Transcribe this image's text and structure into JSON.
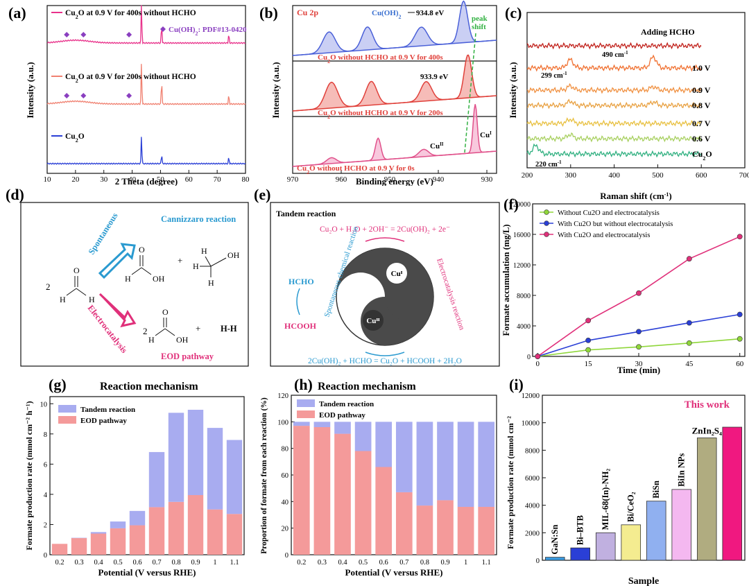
{
  "panels": {
    "a": {
      "label": "(a)",
      "xlabel": "2 Theta (degree)",
      "ylabel": "Intensity (a.u.)",
      "xticks": [
        10,
        20,
        30,
        40,
        50,
        60,
        70,
        80
      ],
      "legend_marker": "Cu(OH)",
      "legend_marker_sub": "2",
      "legend_marker_rest": ": PDF#13-0420",
      "series": [
        {
          "name_pre": "Cu",
          "name_sub": "2",
          "name_post": "O at 0.9 V for 400s without HCHO",
          "color": "#e8318a"
        },
        {
          "name_pre": "Cu",
          "name_sub": "2",
          "name_post": "O at 0.9 V for 200s without HCHO",
          "color": "#f08070"
        },
        {
          "name_pre": "Cu",
          "name_sub": "2",
          "name_post": "O",
          "color": "#2a3fd6"
        }
      ],
      "peaks": [
        43.3,
        50.4,
        74.1
      ],
      "diamonds": [
        16.9,
        22.8,
        38.9
      ]
    },
    "b": {
      "label": "(b)",
      "corner": "Cu 2p",
      "xlabel": "Binding energy (eV)",
      "ylabel": "Intensity (a.u.)",
      "xticks": [
        970,
        960,
        950,
        940,
        930
      ],
      "ann_top": "934.8 eV",
      "ann_top_species": "Cu(OH)",
      "ann_top_species_sub": "2",
      "ann_shift": "peak",
      "ann_shift2": "shift",
      "ann_mid": "933.9 eV",
      "ann_cu2": "Cu",
      "ann_cu2_sup": "II",
      "ann_cu1": "Cu",
      "ann_cu1_sup": "I",
      "spectra": [
        {
          "name_pre": "Cu",
          "name_sub": "2",
          "name_post": "O without HCHO at 0.9 V for 400s",
          "color": "#4a60d8",
          "fill": "#b8bff0"
        },
        {
          "name_pre": "Cu",
          "name_sub": "2",
          "name_post": "O without HCHO at 0.9 V for 200s",
          "color": "#e0403a",
          "fill": "#f3a6a0"
        },
        {
          "name_pre": "Cu",
          "name_sub": "2",
          "name_post": "O without HCHO  at 0.9 V for 0s",
          "color": "#e0508a",
          "fill": "#f6b6d2"
        }
      ]
    },
    "c": {
      "label": "(c)",
      "xlabel": "Raman shift (cm",
      "xlabel_sup": "-1",
      "xlabel_end": ")",
      "ylabel": "Intensity (a.u.)",
      "xticks": [
        200,
        300,
        400,
        500,
        600,
        700
      ],
      "ann_299": "299 cm",
      "ann_490": "490 cm",
      "ann_220": "220 cm",
      "ann_sup": "-1",
      "traces": [
        {
          "label": "Adding HCHO",
          "color": "#c0201a"
        },
        {
          "label": "1.0 V",
          "color": "#f07030"
        },
        {
          "label": "0.9 V",
          "color": "#f09040"
        },
        {
          "label": "0.8 V",
          "color": "#e8a040"
        },
        {
          "label": "0.7 V",
          "color": "#e8c040"
        },
        {
          "label": "0.6 V",
          "color": "#a8d060"
        },
        {
          "label": "Cu",
          "label_sub": "2",
          "label_post": "O",
          "color": "#30b080"
        }
      ]
    },
    "d": {
      "label": "(d)",
      "title": "Cannizzaro reaction",
      "spont": "Spontaneous",
      "electro": "Electrocatalysis",
      "eod": "EOD pathway",
      "coef": "2",
      "coef2": "2",
      "plus": "+",
      "hh": "H-H"
    },
    "e": {
      "label": "(e)",
      "title": "Tandem reaction",
      "eq_top": "Cu₂O + H₂O + 2OH⁻ = 2Cu(OH)₂ + 2e⁻",
      "eq_bottom": "2Cu(OH)₂ + HCHO = Cu₂O + HCOOH + 2H₂O",
      "hcho": "HCHO",
      "hcooh": "HCOOH",
      "cu1": "Cuᴵ",
      "cu2": "Cuᴵᴵ",
      "left_arc": "Spontaneous chemical reaction",
      "right_arc": "Electrocatalysis reaction"
    },
    "f": {
      "label": "(f)",
      "xlabel": "Time (min)",
      "ylabel": "Formate accumulation (mg/L)",
      "xticks": [
        0,
        15,
        30,
        45,
        60
      ],
      "yticks": [
        0,
        4000,
        8000,
        12000,
        16000,
        20000
      ]
    },
    "g": {
      "label": "(g)",
      "title": "Reaction mechanism",
      "xlabel": "Potential (V versus RHE)",
      "ylabel": "Formate production rate (mmol cm⁻² h⁻¹)",
      "yticks": [
        0,
        2,
        4,
        6,
        8,
        10
      ]
    },
    "h": {
      "label": "(h)",
      "title": "Reaction mechanism",
      "xlabel": "Potential (V versus RHE)",
      "ylabel": "Proportion of formate from each reaction (%)",
      "yticks": [
        0,
        20,
        40,
        60,
        80,
        100,
        120
      ]
    },
    "i": {
      "label": "(i)",
      "note": "This work",
      "xlabel": "Sample",
      "ylabel": "Formate production rate (mmol cm⁻²",
      "yticks": [
        0,
        2000,
        4000,
        6000,
        8000,
        10000,
        12000
      ]
    }
  },
  "chart_data": [
    {
      "id": "a",
      "type": "line",
      "xlabel": "2 Theta (degree)",
      "ylabel": "Intensity (a.u.)",
      "xlim": [
        10,
        80
      ],
      "series": [
        {
          "name": "Cu2O at 0.9 V for 400s without HCHO",
          "peak_positions": [
            43.3,
            50.4,
            74.1
          ],
          "peak_heights": [
            1.0,
            0.45,
            0.3
          ]
        },
        {
          "name": "Cu2O at 0.9 V for 200s without HCHO",
          "peak_positions": [
            43.3,
            50.4,
            74.1
          ],
          "peak_heights": [
            1.0,
            0.6,
            0.25
          ]
        },
        {
          "name": "Cu2O",
          "peak_positions": [
            43.3,
            50.4,
            74.1
          ],
          "peak_heights": [
            1.0,
            0.35,
            0.2
          ]
        }
      ],
      "legend": [
        "Cu2O at 0.9 V for 400s without HCHO",
        "Cu2O at 0.9 V for 200s without HCHO",
        "Cu2O",
        "Cu(OH)2: PDF#13-0420"
      ]
    },
    {
      "id": "b",
      "type": "line",
      "xlabel": "Binding energy (eV)",
      "ylabel": "Intensity (a.u.)",
      "xlim": [
        970,
        928
      ],
      "series": [
        {
          "name": "Cu2O without HCHO at 0.9 V for 400s",
          "peaks_eV": [
            962.5,
            954.6,
            943.5,
            934.8
          ],
          "peak_heights": [
            0.5,
            0.55,
            0.45,
            1.0
          ]
        },
        {
          "name": "Cu2O without HCHO at 0.9 V for 200s",
          "peaks_eV": [
            962.0,
            953.8,
            942.5,
            933.9
          ],
          "peak_heights": [
            0.6,
            0.55,
            0.45,
            1.0
          ]
        },
        {
          "name": "Cu2O without HCHO at 0.9 V for 0s",
          "peaks_eV": [
            962.0,
            952.4,
            943.0,
            932.4
          ],
          "peak_heights": [
            0.12,
            0.45,
            0.15,
            1.0
          ]
        }
      ]
    },
    {
      "id": "c",
      "type": "line",
      "xlabel": "Raman shift (cm-1)",
      "ylabel": "Intensity (a.u.)",
      "xlim": [
        200,
        700
      ],
      "series": [
        {
          "name": "Adding HCHO",
          "peaks_cm": []
        },
        {
          "name": "1.0 V",
          "peaks_cm": [
            299,
            490
          ]
        },
        {
          "name": "0.9 V",
          "peaks_cm": [
            299,
            490
          ]
        },
        {
          "name": "0.8 V",
          "peaks_cm": [
            299,
            490
          ]
        },
        {
          "name": "0.7 V",
          "peaks_cm": [
            299
          ]
        },
        {
          "name": "0.6 V",
          "peaks_cm": [
            299
          ]
        },
        {
          "name": "Cu2O",
          "peaks_cm": [
            220
          ]
        }
      ]
    },
    {
      "id": "f",
      "type": "line",
      "xlabel": "Time (min)",
      "ylabel": "Formate accumulation (mg/L)",
      "xlim": [
        0,
        60
      ],
      "ylim": [
        0,
        20000
      ],
      "x": [
        0,
        15,
        30,
        45,
        60
      ],
      "series": [
        {
          "name": "Without Cu2O and electrocatalysis",
          "color": "#8fd63a",
          "values": [
            0,
            850,
            1250,
            1750,
            2300
          ]
        },
        {
          "name": "With Cu2O but without electrocatalysis",
          "color": "#2a3fd6",
          "values": [
            0,
            2100,
            3250,
            4400,
            5500
          ]
        },
        {
          "name": "With Cu2O and electrocatalysis",
          "color": "#e0307a",
          "values": [
            0,
            4700,
            8300,
            12800,
            15700
          ]
        }
      ],
      "legend": "top-left"
    },
    {
      "id": "g",
      "type": "bar",
      "stacked": true,
      "title": "Reaction mechanism",
      "xlabel": "Potential (V versus RHE)",
      "ylabel": "Formate production rate (mmol cm-2 h-1)",
      "ylim": [
        0,
        10
      ],
      "categories": [
        "0.2",
        "0.3",
        "0.4",
        "0.5",
        "0.6",
        "0.7",
        "0.8",
        "0.9",
        "1",
        "1.1"
      ],
      "series": [
        {
          "name": "EOD pathway",
          "color": "#f49a9a",
          "values": [
            0.72,
            1.1,
            1.4,
            1.75,
            1.95,
            3.15,
            3.5,
            3.95,
            3.0,
            2.7
          ]
        },
        {
          "name": "Tandem reaction",
          "color": "#a8acf0",
          "values": [
            0.0,
            0.02,
            0.1,
            0.45,
            0.95,
            3.65,
            5.9,
            5.65,
            5.4,
            4.9
          ]
        }
      ],
      "legend": "top-left"
    },
    {
      "id": "h",
      "type": "bar",
      "stacked": true,
      "title": "Reaction mechanism",
      "xlabel": "Potential (V versus RHE)",
      "ylabel": "Proportion of formate from each reaction (%)",
      "ylim": [
        0,
        120
      ],
      "categories": [
        "0.2",
        "0.3",
        "0.4",
        "0.5",
        "0.6",
        "0.7",
        "0.8",
        "0.9",
        "1",
        "1.1"
      ],
      "series": [
        {
          "name": "EOD pathway",
          "color": "#f49a9a",
          "values": [
            97,
            96,
            91,
            78,
            66,
            47,
            37,
            41,
            36,
            36
          ]
        },
        {
          "name": "Tandem reaction",
          "color": "#a8acf0",
          "values": [
            3,
            4,
            9,
            22,
            34,
            53,
            63,
            59,
            64,
            64
          ]
        }
      ],
      "legend": "top-left"
    },
    {
      "id": "i",
      "type": "bar",
      "xlabel": "Sample",
      "ylabel": "Formate production rate (mmol cm-2",
      "ylim": [
        0,
        12000
      ],
      "categories": [
        "GaN:Sn",
        "Bi–BTB",
        "MIL-68(In)-NH₂",
        "Bi/CeO₂",
        "BiSn",
        "BiIn NPs",
        "ZnIn₂S₄",
        "This work"
      ],
      "values": [
        220,
        900,
        2000,
        2580,
        4300,
        5150,
        8900,
        9680
      ],
      "colors": [
        "#3a9ae0",
        "#2a3fd6",
        "#c0b0e0",
        "#f4ec90",
        "#90b0f0",
        "#f4b8f0",
        "#b0ac80",
        "#f01880"
      ]
    }
  ]
}
